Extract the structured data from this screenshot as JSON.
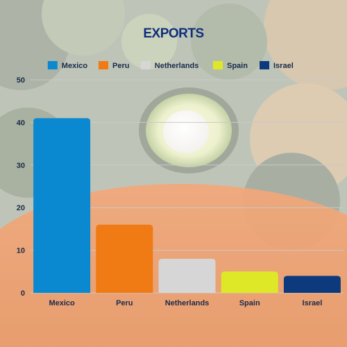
{
  "chart_data": {
    "type": "bar",
    "title": "EXPORTS",
    "categories": [
      "Mexico",
      "Peru",
      "Netherlands",
      "Spain",
      "Israel"
    ],
    "values": [
      41,
      16,
      8,
      5,
      4
    ],
    "colors": [
      "#0a88d0",
      "#f07a14",
      "#d6d6d6",
      "#dfe826",
      "#0d3a7c"
    ],
    "ylim": [
      0,
      50
    ],
    "yticks": [
      0,
      10,
      20,
      30,
      40,
      50
    ],
    "grid": true,
    "legend": {
      "position": "top",
      "entries": [
        "Mexico",
        "Peru",
        "Netherlands",
        "Spain",
        "Israel"
      ]
    },
    "background": "avocado-photo",
    "colors_theme": {
      "title": "#0f2f7a",
      "text": "#1a2a4a",
      "grid": "#c9c9c9"
    }
  }
}
